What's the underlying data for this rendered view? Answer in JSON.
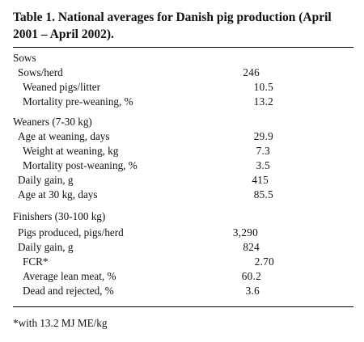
{
  "table": {
    "title": "Table 1. National averages for Danish pig production (April 2001 – April 2002).",
    "sections": [
      {
        "heading": "Sows",
        "rows": [
          {
            "label": "Sows/herd",
            "value": "246"
          },
          {
            "label": "Weaned pigs/litter",
            "value": "10.5"
          },
          {
            "label": "Mortality pre-weaning, %",
            "value": "13.2"
          }
        ]
      },
      {
        "heading": "Weaners (7-30 kg)",
        "rows": [
          {
            "label": "Age at weaning, days",
            "value": "29.9"
          },
          {
            "label": "Weight at weaning, kg",
            "value": "7.3"
          },
          {
            "label": "Mortality post-weaning, %",
            "value": "3.5"
          },
          {
            "label": "Daily gain, g",
            "value": "415"
          },
          {
            "label": "Age at 30 kg, days",
            "value": "85.5"
          }
        ]
      },
      {
        "heading": "Finishers (30-100 kg)",
        "rows": [
          {
            "label": "Pigs produced, pigs/herd",
            "value": "3,290"
          },
          {
            "label": "Daily gain, g",
            "value": "824"
          },
          {
            "label": "FCR*",
            "value": "2.70"
          },
          {
            "label": "Average lean meat, %",
            "value": "60.2"
          },
          {
            "label": "Dead and rejected, %",
            "value": "3.6"
          }
        ]
      }
    ],
    "footnote": "*with 13.2 MJ ME/kg"
  }
}
